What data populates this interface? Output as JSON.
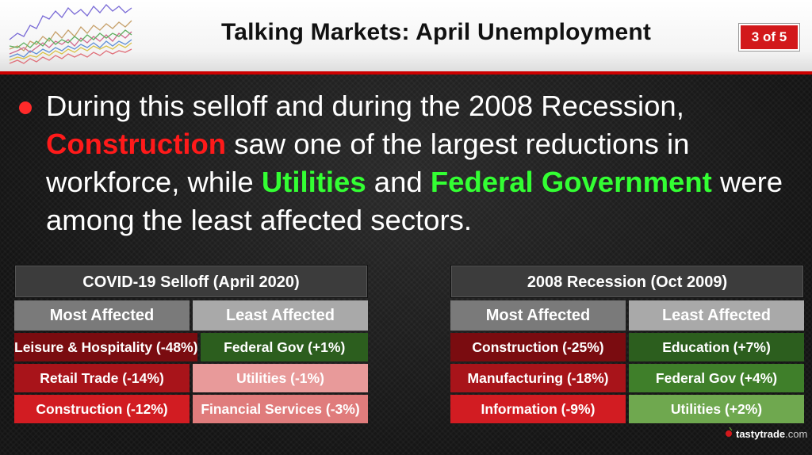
{
  "header": {
    "title": "Talking Markets: April Unemployment",
    "page_indicator": "3 of 5"
  },
  "bullet": {
    "seg1": "During this selloff and during the 2008 Recession,",
    "seg2": "Construction",
    "seg3": " saw one of the largest reductions in workforce, while ",
    "seg4": "Utilities",
    "seg5": " and ",
    "seg6": "Federal Government",
    "seg7": " were among the least affected sectors."
  },
  "tables": {
    "covid": {
      "title": "COVID-19 Selloff (April 2020)",
      "most_label": "Most Affected",
      "least_label": "Least Affected",
      "rows": [
        {
          "most": "Leisure & Hospitality (-48%)",
          "least": "Federal Gov (+1%)"
        },
        {
          "most": "Retail Trade (-14%)",
          "least": "Utilities (-1%)"
        },
        {
          "most": "Construction (-12%)",
          "least": "Financial Services (-3%)"
        }
      ]
    },
    "recession": {
      "title": "2008 Recession (Oct 2009)",
      "most_label": "Most Affected",
      "least_label": "Least Affected",
      "rows": [
        {
          "most": "Construction (-25%)",
          "least": "Education (+7%)"
        },
        {
          "most": "Manufacturing (-18%)",
          "least": "Federal Gov (+4%)"
        },
        {
          "most": "Information (-9%)",
          "least": "Utilities (+2%)"
        }
      ]
    }
  },
  "footer": {
    "brand": "tastytrade",
    "domain": ".com"
  },
  "colors": {
    "accent_red": "#d2181b",
    "highlight_red": "#ff1a1a",
    "highlight_green": "#33ff33",
    "covid_most": [
      "#7a0c10",
      "#a8141a",
      "#d21c22"
    ],
    "covid_least": [
      "#2c5e1e",
      "#e89a9a",
      "#e07c7c"
    ],
    "recession_most": [
      "#7a0c10",
      "#a8141a",
      "#d21c22"
    ],
    "recession_least": [
      "#2c5e1e",
      "#3f7f2a",
      "#6fa84f"
    ]
  },
  "icons": {
    "header_logo": "stock-chart-icon",
    "footer_logo": "cherry-icon"
  }
}
